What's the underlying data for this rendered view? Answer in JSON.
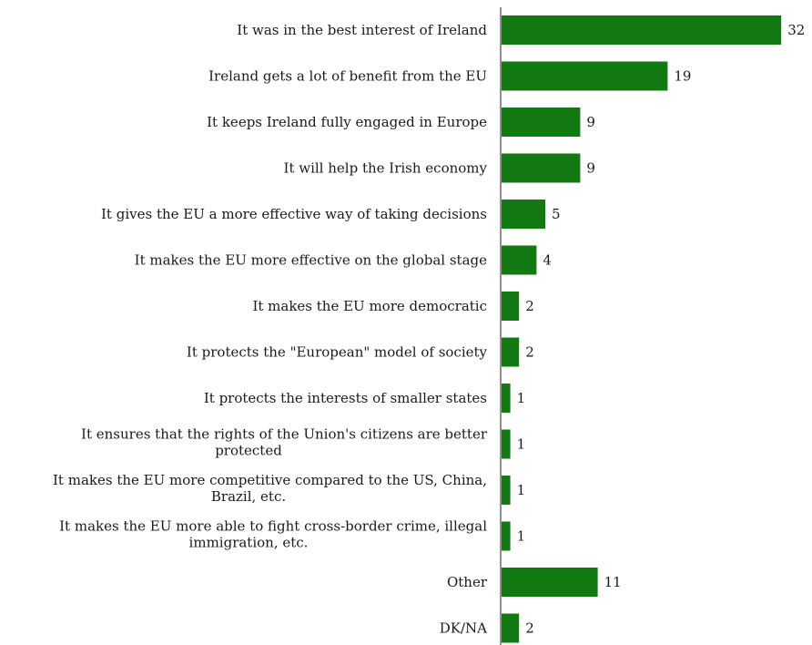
{
  "chart_data": {
    "type": "bar",
    "orientation": "horizontal",
    "categories": [
      [
        "It was in the best interest of Ireland"
      ],
      [
        "Ireland gets a lot of benefit from the EU"
      ],
      [
        "It keeps Ireland fully engaged in Europe"
      ],
      [
        "It will help the Irish economy"
      ],
      [
        "It gives the EU a more effective way of taking decisions"
      ],
      [
        "It makes the EU more effective on the global stage"
      ],
      [
        "It makes the EU more democratic"
      ],
      [
        "It protects the \"European\" model of society"
      ],
      [
        "It protects the interests of smaller states"
      ],
      [
        "It ensures that the rights of the Union's citizens are better",
        "protected"
      ],
      [
        "It makes the EU more competitive compared to the US, China,",
        "Brazil, etc."
      ],
      [
        "It makes the EU more able to fight cross-border crime, illegal",
        "immigration, etc."
      ],
      [
        "Other"
      ],
      [
        "DK/NA"
      ]
    ],
    "values": [
      32,
      19,
      9,
      9,
      5,
      4,
      2,
      2,
      1,
      1,
      1,
      1,
      11,
      2
    ],
    "title": "",
    "xlabel": "",
    "ylabel": "",
    "xlim": [
      0,
      32
    ],
    "bar_color": "#137a13",
    "grid": false,
    "legend": "none"
  }
}
